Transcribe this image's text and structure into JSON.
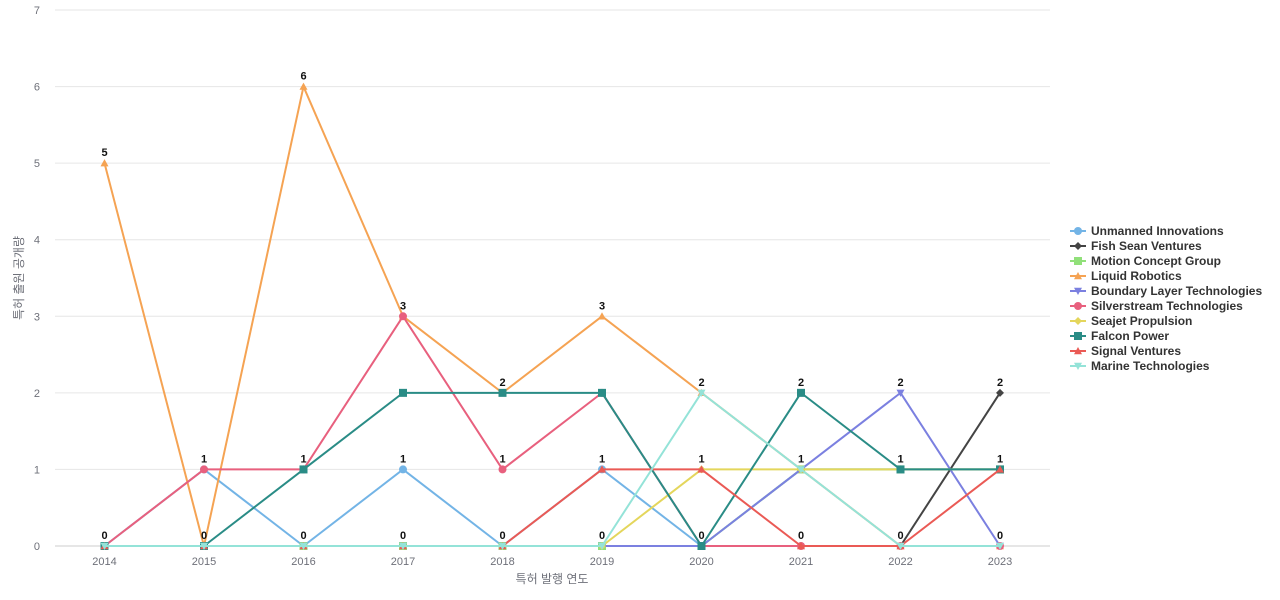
{
  "chart_data": {
    "type": "line",
    "xlabel": "특허 발행 연도",
    "ylabel": "특허 출원 공개량",
    "ylim": [
      0,
      7
    ],
    "y_ticks": [
      0,
      1,
      2,
      3,
      4,
      5,
      6,
      7
    ],
    "grid": true,
    "legend_position": "right",
    "categories": [
      "2014",
      "2015",
      "2016",
      "2017",
      "2018",
      "2019",
      "2020",
      "2021",
      "2022",
      "2023"
    ],
    "series": [
      {
        "name": "Unmanned Innovations",
        "color": "#73b4e6",
        "marker": "circle",
        "values": [
          0,
          1,
          0,
          1,
          0,
          1,
          0,
          1,
          1,
          1
        ]
      },
      {
        "name": "Fish Sean Ventures",
        "color": "#444444",
        "marker": "diamond",
        "values": [
          0,
          0,
          0,
          0,
          0,
          0,
          0,
          0,
          0,
          2
        ]
      },
      {
        "name": "Motion Concept Group",
        "color": "#91e07a",
        "marker": "square",
        "values": [
          0,
          0,
          0,
          0,
          0,
          0,
          0,
          1,
          1,
          1
        ]
      },
      {
        "name": "Liquid Robotics",
        "color": "#f5a353",
        "marker": "triangle-up",
        "values": [
          5,
          0,
          6,
          3,
          2,
          3,
          2,
          1,
          0,
          0
        ]
      },
      {
        "name": "Boundary Layer Technologies",
        "color": "#7b80e0",
        "marker": "triangle-down",
        "values": [
          0,
          0,
          0,
          0,
          0,
          0,
          0,
          1,
          2,
          0
        ]
      },
      {
        "name": "Silverstream Technologies",
        "color": "#e8607e",
        "marker": "circle",
        "values": [
          0,
          1,
          1,
          3,
          1,
          2,
          0,
          0,
          0,
          0
        ]
      },
      {
        "name": "Seajet Propulsion",
        "color": "#e4d65c",
        "marker": "diamond",
        "values": [
          0,
          0,
          0,
          0,
          0,
          0,
          1,
          1,
          1,
          1
        ]
      },
      {
        "name": "Falcon Power",
        "color": "#2a8c86",
        "marker": "square",
        "values": [
          0,
          0,
          1,
          2,
          2,
          2,
          0,
          2,
          1,
          1
        ]
      },
      {
        "name": "Signal Ventures",
        "color": "#ea5a55",
        "marker": "triangle-up",
        "values": [
          0,
          0,
          0,
          0,
          0,
          1,
          1,
          0,
          0,
          1
        ]
      },
      {
        "name": "Marine Technologies",
        "color": "#94e3d8",
        "marker": "triangle-down",
        "values": [
          0,
          0,
          0,
          0,
          0,
          0,
          2,
          1,
          0,
          0
        ]
      }
    ],
    "max_labels": [
      5,
      1,
      6,
      3,
      2,
      3,
      2,
      2,
      2,
      2
    ],
    "min_labels": [
      0,
      0,
      0,
      0,
      0,
      0,
      0,
      0,
      0,
      0
    ],
    "mid_labels": [
      null,
      null,
      1,
      1,
      1,
      1,
      1,
      1,
      1,
      1
    ]
  }
}
